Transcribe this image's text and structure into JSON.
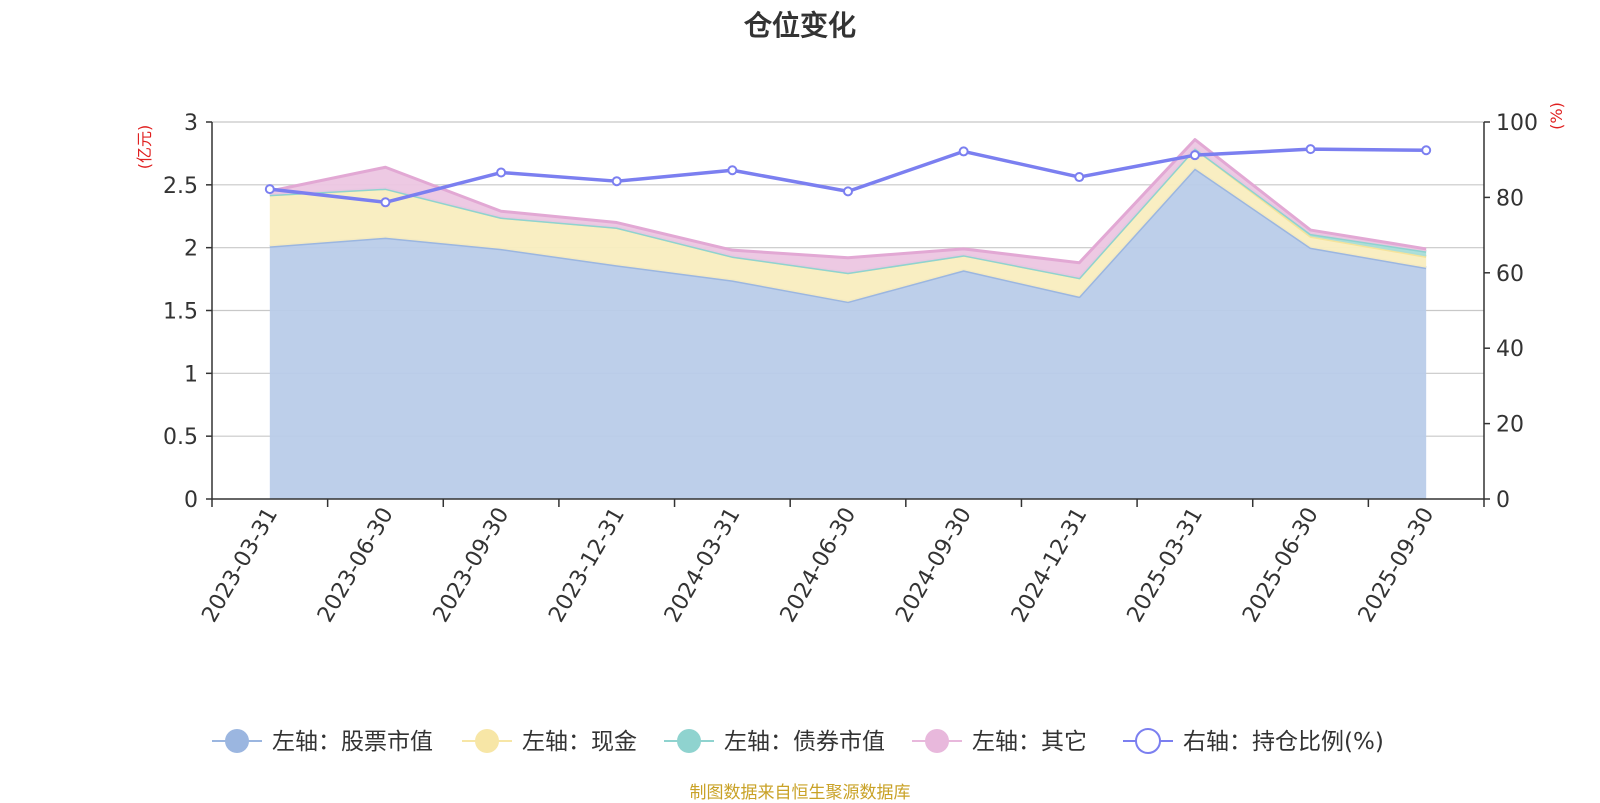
{
  "title": "仓位变化",
  "source_note": "制图数据来自恒生聚源数据库",
  "left_axis_unit": "(亿元)",
  "right_axis_unit": "(%)",
  "legend": [
    {
      "label": "左轴：股票市值",
      "color": "#9bb6e0",
      "icon": "filled-circle"
    },
    {
      "label": "左轴：现金",
      "color": "#f7e6a6",
      "icon": "filled-circle"
    },
    {
      "label": "左轴：债券市值",
      "color": "#8fd3cf",
      "icon": "filled-circle"
    },
    {
      "label": "左轴：其它",
      "color": "#e8b8dc",
      "icon": "filled-circle"
    },
    {
      "label": "右轴：持仓比例(%)",
      "color": "#7b7ff0",
      "icon": "hollow-circle"
    }
  ],
  "chart_data": {
    "type": "area",
    "stacked": true,
    "categories": [
      "2023-03-31",
      "2023-06-30",
      "2023-09-30",
      "2023-12-31",
      "2024-03-31",
      "2024-06-30",
      "2024-09-30",
      "2024-12-31",
      "2025-03-31",
      "2025-06-30",
      "2025-09-30"
    ],
    "left_axis": {
      "ylim": [
        0,
        3
      ],
      "ticks": [
        0,
        0.5,
        1,
        1.5,
        2,
        2.5,
        3
      ],
      "tick_labels": [
        "0",
        "0.5",
        "1",
        "1.5",
        "2",
        "2.5",
        "3"
      ]
    },
    "right_axis": {
      "ylim": [
        0,
        100
      ],
      "ticks": [
        0,
        20,
        40,
        60,
        80,
        100
      ],
      "tick_labels": [
        "0",
        "20",
        "40",
        "60",
        "80",
        "100"
      ]
    },
    "grid": true,
    "legend_position": "bottom",
    "series": [
      {
        "name": "左轴：股票市值",
        "axis": "left",
        "type": "area",
        "color": "#b9cce9",
        "line_color": "#9bb6e0",
        "values": [
          2.01,
          2.08,
          1.99,
          1.86,
          1.74,
          1.57,
          1.82,
          1.61,
          2.63,
          2.0,
          1.84
        ]
      },
      {
        "name": "左轴：现金",
        "axis": "left",
        "type": "area",
        "color": "#f9edbf",
        "line_color": "#f5e39b",
        "values": [
          0.41,
          0.39,
          0.25,
          0.3,
          0.19,
          0.23,
          0.12,
          0.15,
          0.16,
          0.09,
          0.09
        ]
      },
      {
        "name": "左轴：债券市值",
        "axis": "left",
        "type": "area",
        "color": "#a8ddd9",
        "line_color": "#8fd3cf",
        "values": [
          0,
          0,
          0,
          0,
          0,
          0,
          0,
          0,
          0,
          0.02,
          0.04
        ]
      },
      {
        "name": "左轴：其它",
        "axis": "left",
        "type": "area",
        "color": "#ecc6e2",
        "line_color": "#e2a8d4",
        "values": [
          0.03,
          0.17,
          0.05,
          0.04,
          0.05,
          0.12,
          0.05,
          0.12,
          0.07,
          0.03,
          0.02
        ]
      },
      {
        "name": "右轴：持仓比例(%)",
        "axis": "right",
        "type": "line",
        "color": "#7b7ff0",
        "values": [
          82.2,
          78.7,
          86.6,
          84.3,
          87.2,
          81.6,
          92.2,
          85.4,
          91.2,
          92.8,
          92.5
        ]
      }
    ]
  }
}
